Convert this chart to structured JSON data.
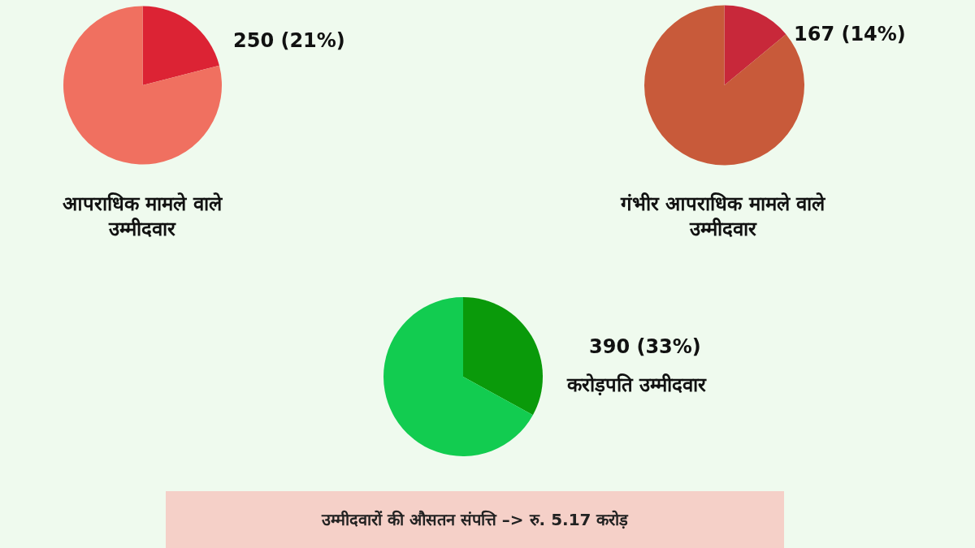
{
  "chart_data": [
    {
      "type": "pie",
      "title": "आपराधिक मामले वाले उम्मीदवार",
      "categories": [
        null,
        null
      ],
      "values": [
        21,
        79
      ],
      "colors": [
        "#dc2334",
        "#f07060"
      ],
      "value_labels": [
        "250 (21%)",
        null
      ]
    },
    {
      "type": "pie",
      "title": "गंभीर आपराधिक मामले वाले उम्मीदवार",
      "categories": [
        null,
        null
      ],
      "values": [
        14,
        86
      ],
      "colors": [
        "#c8283a",
        "#c85a3a"
      ],
      "value_labels": [
        "167 (14%)",
        null
      ]
    },
    {
      "type": "pie",
      "title": "करोड़पति उम्मीदवार",
      "categories": [
        null,
        null
      ],
      "values": [
        33,
        67
      ],
      "colors": [
        "#0a9a0a",
        "#12cc50"
      ],
      "value_labels": [
        "390 (33%)",
        null
      ]
    },
    {
      "type": "other",
      "annotations": [
        "उम्मीदवारों की औसतन संपत्ति –> रु. 5.17 करोड़"
      ]
    }
  ]
}
